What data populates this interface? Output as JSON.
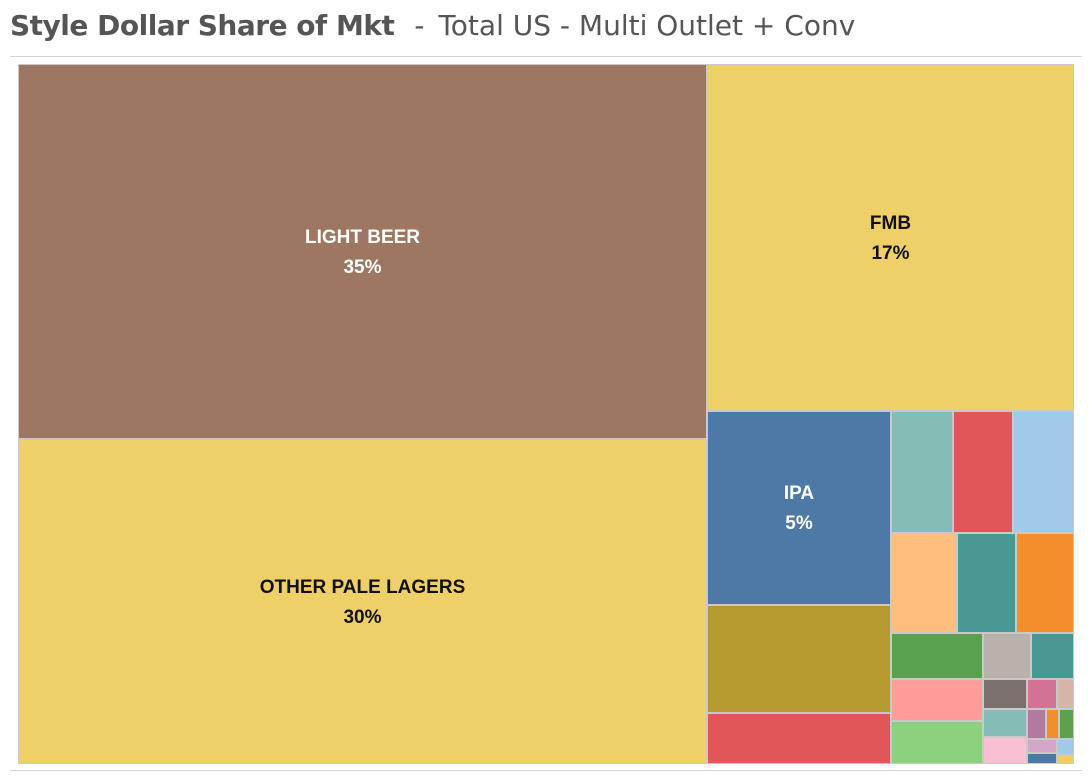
{
  "title": {
    "main": "Style Dollar Share of Mkt",
    "separator": "-",
    "subtitle": "Total US - Multi Outlet + Conv"
  },
  "chart_data": {
    "type": "treemap",
    "labels_shown_for": [
      "LIGHT BEER",
      "OTHER PALE LAGERS",
      "FMB",
      "IPA"
    ],
    "tiles": [
      {
        "label": "LIGHT BEER",
        "share": 35,
        "value_label": "35%",
        "color": "#9e7762",
        "text_color": "#ffffff"
      },
      {
        "label": "OTHER PALE LAGERS",
        "share": 30,
        "value_label": "30%",
        "color": "#efcf67",
        "text_color": "#111111"
      },
      {
        "label": "FMB",
        "share": 17,
        "value_label": "17%",
        "color": "#efcf67",
        "text_color": "#111111"
      },
      {
        "label": "IPA",
        "share": 5,
        "value_label": "5%",
        "color": "#4e79a7",
        "text_color": "#ffffff"
      },
      {
        "label": "",
        "share": 2.0,
        "color": "#b59a2f"
      },
      {
        "label": "",
        "share": 0.9,
        "color": "#e15759"
      },
      {
        "label": "",
        "share": 0.7,
        "color": "#86bcb6"
      },
      {
        "label": "",
        "share": 0.7,
        "color": "#e15759"
      },
      {
        "label": "",
        "share": 0.7,
        "color": "#a0cbe8"
      },
      {
        "label": "",
        "share": 0.7,
        "color": "#ffbe7d"
      },
      {
        "label": "",
        "share": 0.6,
        "color": "#499894"
      },
      {
        "label": "",
        "share": 0.5,
        "color": "#f28e2b"
      },
      {
        "label": "",
        "share": 0.4,
        "color": "#59a14f"
      },
      {
        "label": "",
        "share": 0.3,
        "color": "#bab0ac"
      },
      {
        "label": "",
        "share": 0.25,
        "color": "#499894"
      },
      {
        "label": "",
        "share": 0.35,
        "color": "#ff9d9a"
      },
      {
        "label": "",
        "share": 0.3,
        "color": "#8cd17d"
      },
      {
        "label": "",
        "share": 0.15,
        "color": "#79706e"
      },
      {
        "label": "",
        "share": 0.12,
        "color": "#d37295"
      },
      {
        "label": "",
        "share": 0.06,
        "color": "#d7b5a6"
      },
      {
        "label": "",
        "share": 0.12,
        "color": "#86bcb6"
      },
      {
        "label": "",
        "share": 0.06,
        "color": "#b07aa1"
      },
      {
        "label": "",
        "share": 0.05,
        "color": "#f28e2b"
      },
      {
        "label": "",
        "share": 0.05,
        "color": "#59a14f"
      },
      {
        "label": "",
        "share": 0.08,
        "color": "#fabfd2"
      },
      {
        "label": "",
        "share": 0.05,
        "color": "#d4a6c8"
      },
      {
        "label": "",
        "share": 0.04,
        "color": "#a0cbe8"
      },
      {
        "label": "",
        "share": 0.03,
        "color": "#4e79a7"
      },
      {
        "label": "",
        "share": 0.02,
        "color": "#f1ce63"
      }
    ]
  }
}
